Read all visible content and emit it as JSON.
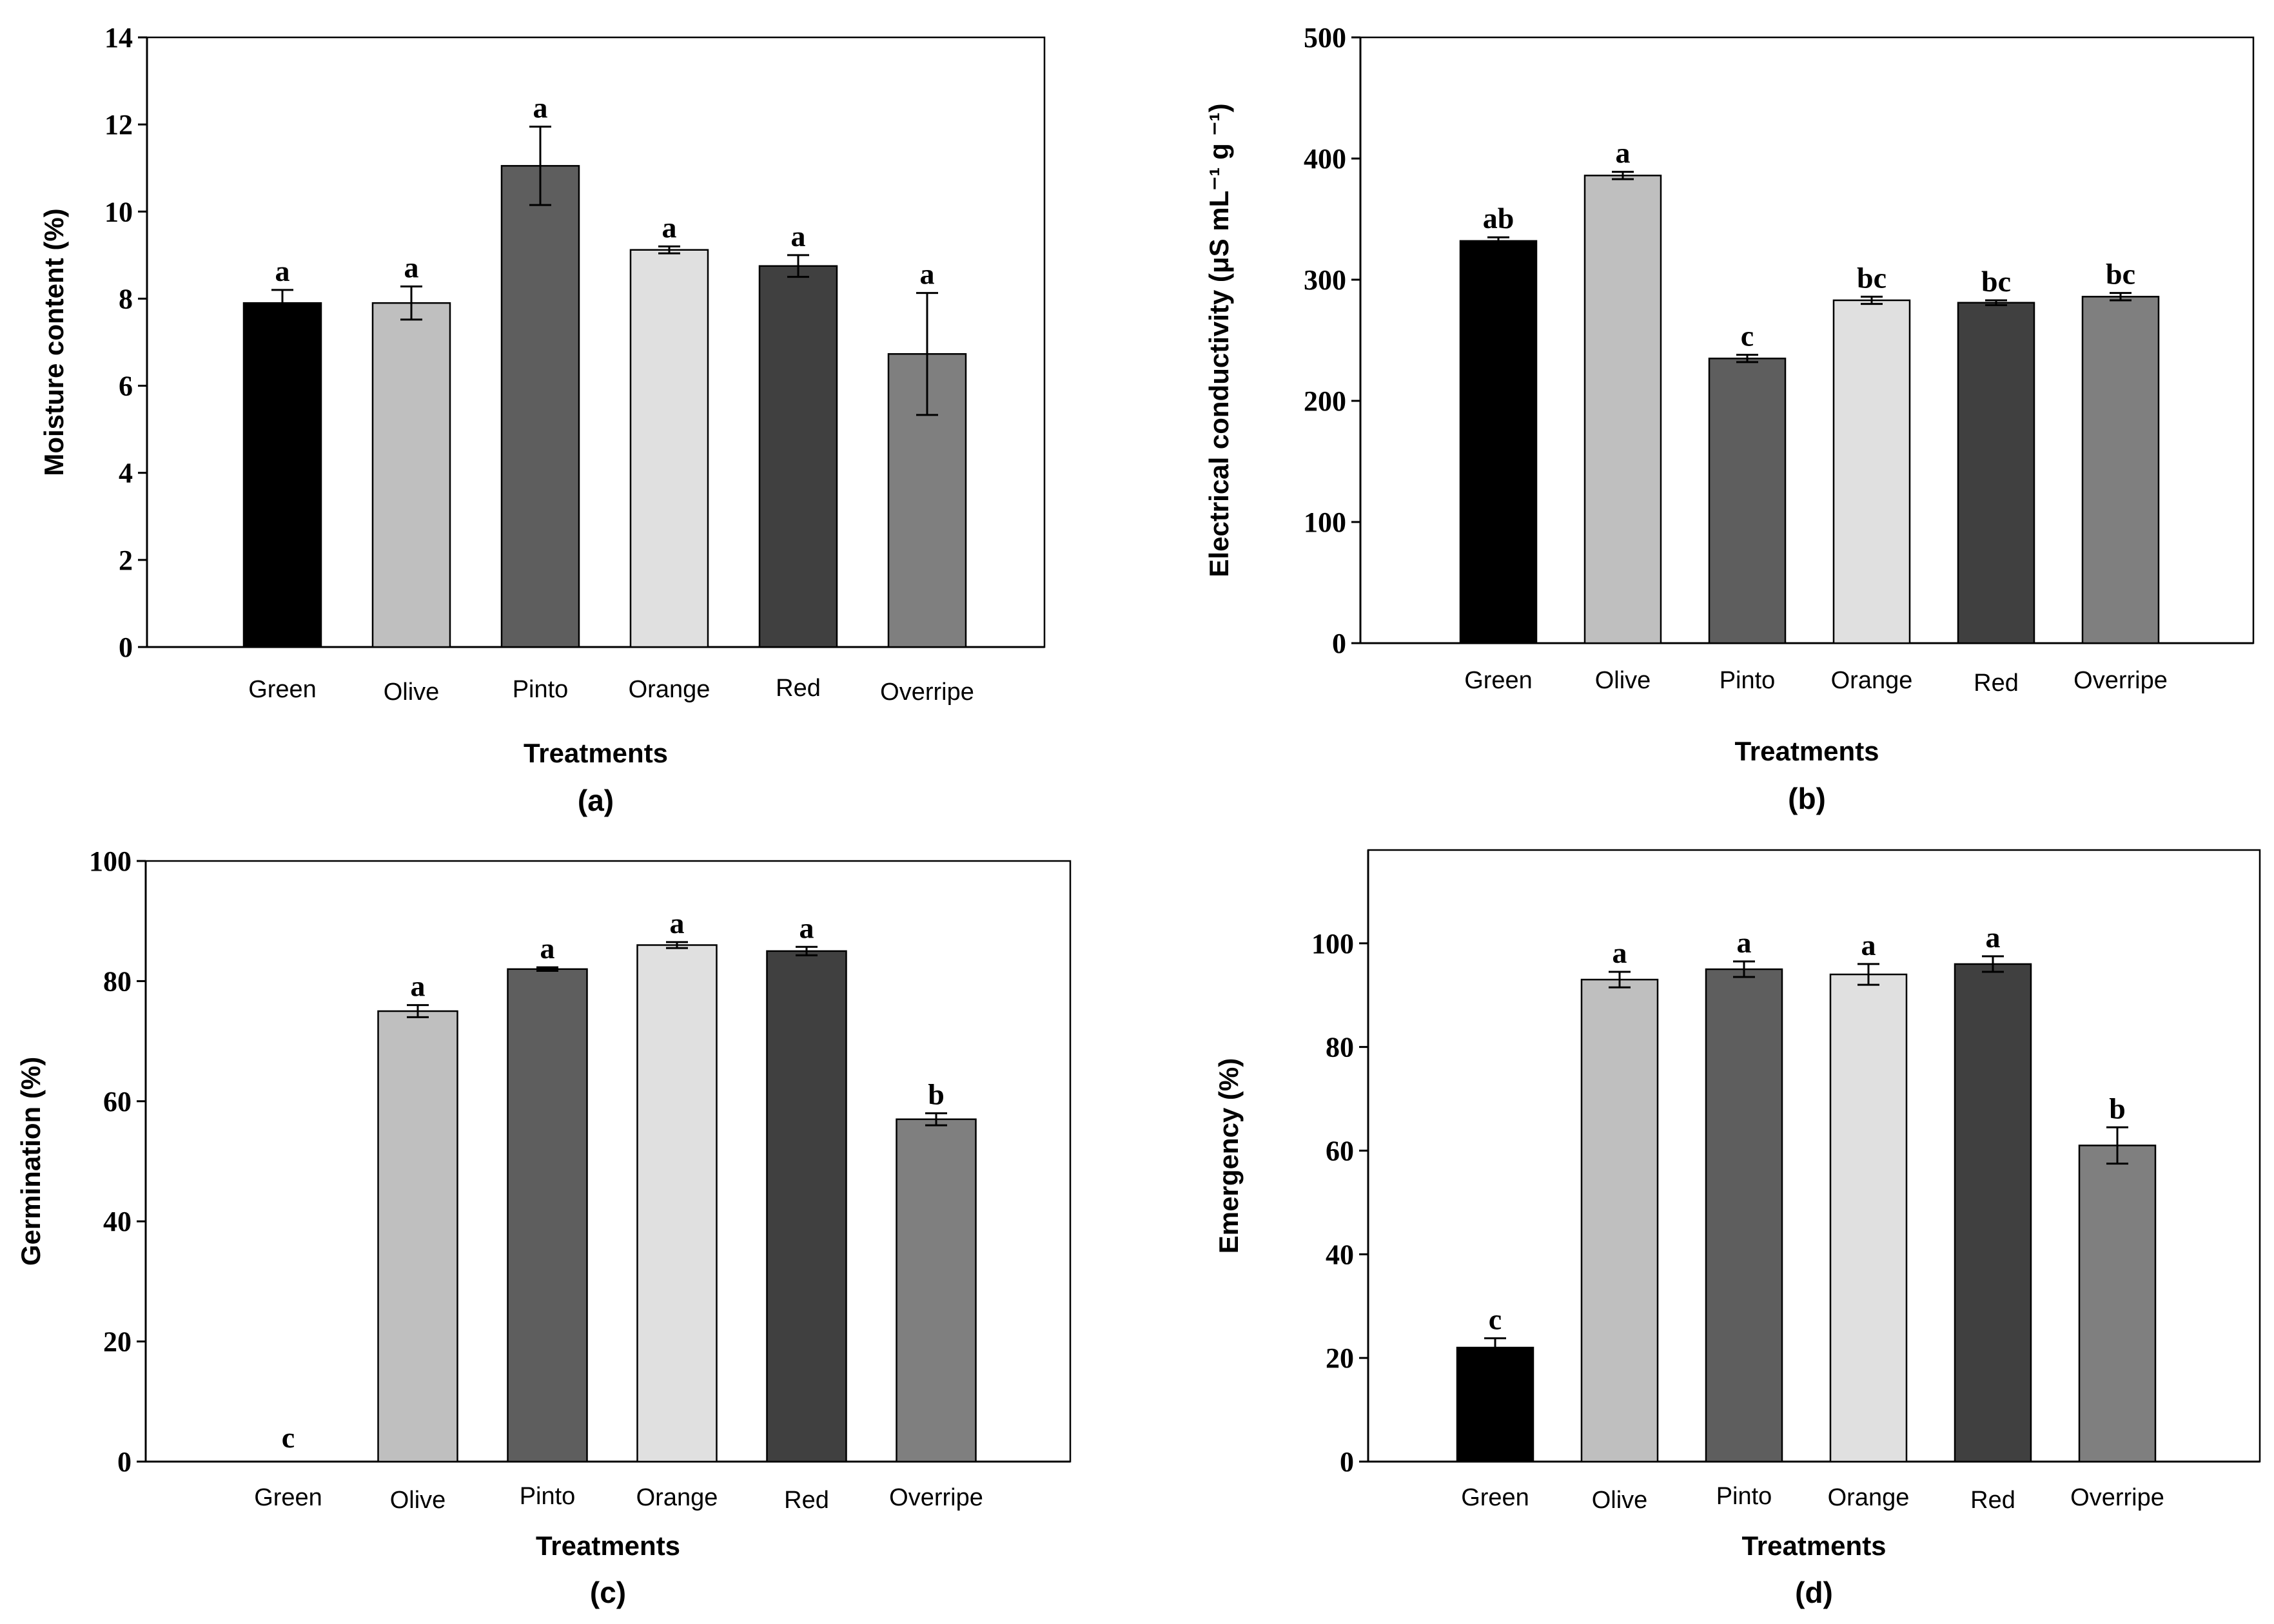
{
  "chart_data": [
    {
      "type": "bar",
      "panel_label": "(a)",
      "categories": [
        "Green",
        "Olive",
        "Pinto",
        "Orange",
        "Red",
        "Overripe"
      ],
      "values": [
        7.9,
        7.9,
        11.05,
        9.12,
        8.75,
        6.73
      ],
      "errors": [
        0.3,
        0.38,
        0.9,
        0.08,
        0.25,
        1.4
      ],
      "significance": [
        "a",
        "a",
        "a",
        "a",
        "a",
        "a"
      ],
      "colors": [
        "#000000",
        "#bfbfbf",
        "#5e5e5e",
        "#e0e0e0",
        "#404040",
        "#7f7f7f"
      ],
      "xlabel": "Treatments",
      "ylabel": "Moisture content  (%)",
      "ylim": [
        0,
        14
      ],
      "yticks": [
        0,
        2,
        4,
        6,
        8,
        10,
        12,
        14
      ]
    },
    {
      "type": "bar",
      "panel_label": "(b)",
      "categories": [
        "Green",
        "Olive",
        "Pinto",
        "Orange",
        "Red",
        "Overripe"
      ],
      "values": [
        332,
        386,
        235,
        283,
        281,
        286
      ],
      "errors": [
        3,
        3,
        3,
        3,
        2,
        3
      ],
      "significance": [
        "ab",
        "a",
        "c",
        "bc",
        "bc",
        "bc"
      ],
      "colors": [
        "#000000",
        "#bfbfbf",
        "#5e5e5e",
        "#e0e0e0",
        "#404040",
        "#7f7f7f"
      ],
      "xlabel": "Treatments",
      "ylabel": "Electrical conductivity (μS mL⁻¹ g ⁻¹)",
      "ylim": [
        0,
        500
      ],
      "yticks": [
        0,
        100,
        200,
        300,
        400,
        500
      ]
    },
    {
      "type": "bar",
      "panel_label": "(c)",
      "categories": [
        "Green",
        "Olive",
        "Pinto",
        "Orange",
        "Red",
        "Overripe"
      ],
      "values": [
        0,
        75,
        82,
        86,
        85,
        57
      ],
      "errors": [
        0,
        1,
        0.3,
        0.5,
        0.7,
        1
      ],
      "significance": [
        "c",
        "a",
        "a",
        "a",
        "a",
        "b"
      ],
      "colors": [
        "#000000",
        "#bfbfbf",
        "#5e5e5e",
        "#e0e0e0",
        "#404040",
        "#7f7f7f"
      ],
      "xlabel": "Treatments",
      "ylabel": "Germination (%)",
      "ylim": [
        0,
        100
      ],
      "yticks": [
        0,
        20,
        40,
        60,
        80,
        100
      ]
    },
    {
      "type": "bar",
      "panel_label": "(d)",
      "categories": [
        "Green",
        "Olive",
        "Pinto",
        "Orange",
        "Red",
        "Overripe"
      ],
      "values": [
        22,
        93,
        95,
        94,
        96,
        61
      ],
      "errors": [
        1.8,
        1.5,
        1.5,
        2,
        1.5,
        3.5
      ],
      "significance": [
        "c",
        "a",
        "a",
        "a",
        "a",
        "b"
      ],
      "colors": [
        "#000000",
        "#bfbfbf",
        "#5e5e5e",
        "#e0e0e0",
        "#404040",
        "#7f7f7f"
      ],
      "xlabel": "Treatments",
      "ylabel": "Emergency (%)",
      "ylim": [
        0,
        118
      ],
      "yticks": [
        0,
        20,
        40,
        60,
        80,
        100
      ]
    }
  ]
}
